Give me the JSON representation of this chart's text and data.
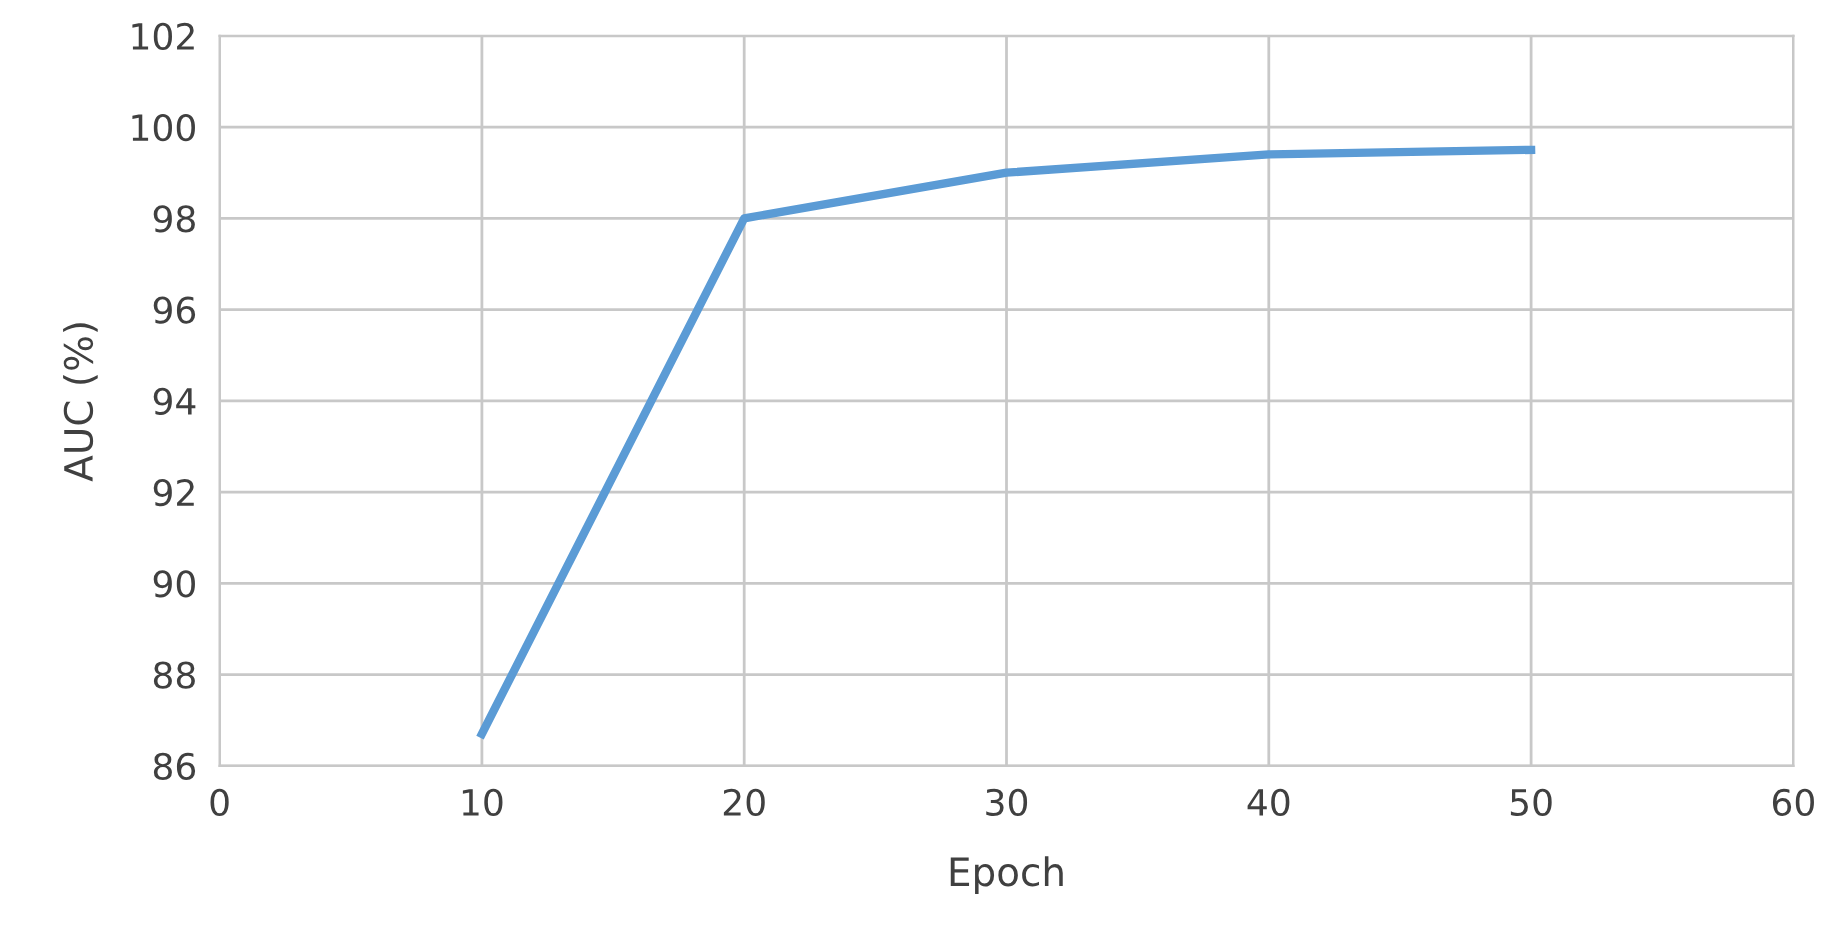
{
  "chart_data": {
    "type": "line",
    "xlabel": "Epoch",
    "ylabel": "AUC (%)",
    "x": [
      10,
      20,
      30,
      40,
      50
    ],
    "series": [
      {
        "color": "#5b9bd5",
        "values": [
          86.7,
          98.0,
          99.0,
          99.4,
          99.5
        ]
      }
    ],
    "xlim": [
      0,
      60
    ],
    "xticks": [
      0,
      10,
      20,
      30,
      40,
      50,
      60
    ],
    "ylim": [
      86,
      102
    ],
    "yticks": [
      86,
      88,
      90,
      92,
      94,
      96,
      98,
      100,
      102
    ],
    "grid": true,
    "marker": "none",
    "line_style": "solid"
  }
}
